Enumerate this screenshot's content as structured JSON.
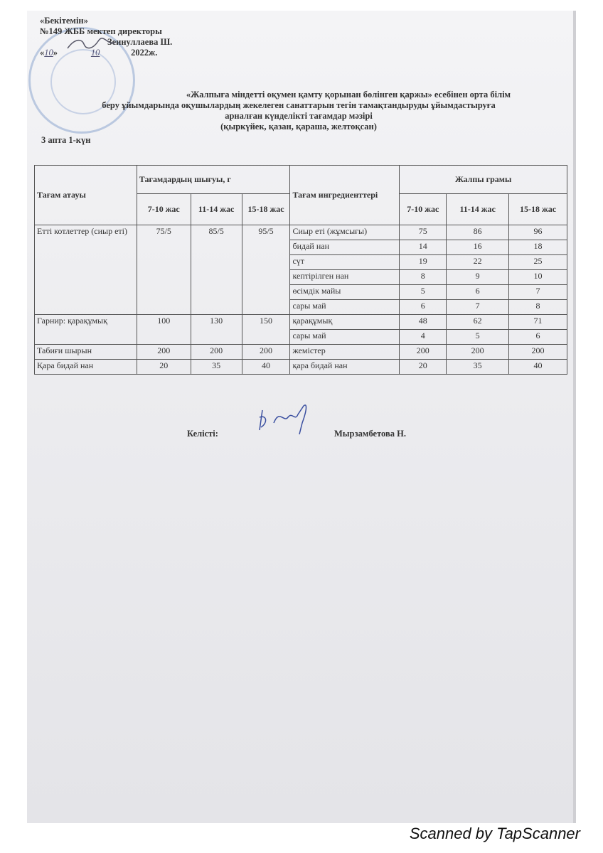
{
  "approval": {
    "line1": "«Бекітемін»",
    "line2": "№149 ЖББ мектеп директоры",
    "line3": "Зеинуллаева Ш.",
    "date_day": "10",
    "date_month": "10",
    "date_year": "2022ж."
  },
  "title": {
    "line1": "«Жалпыға міндетті оқумен қамту қорынан бөлінген қаржы» есебінен орта білім",
    "line2": "беру ұйымдарында оқушылардың жекелеген санаттарын тегін тамақтандыруды ұйымдастыруға",
    "line3": "арналған күнделікті тағамдар мәзірі",
    "line4": "(қыркүйек, қазан, қараша, желтоқсан)"
  },
  "week_day": "3 апта 1-күн",
  "table": {
    "headers": {
      "dish_name": "Тағам атауы",
      "output_group": "Тағамдардың шығуы, г",
      "ingredients": "Тағам ингредиенттері",
      "gross_group": "Жалпы грамы",
      "age1": "7-10 жас",
      "age2": "11-14 жас",
      "age3": "15-18 жас"
    },
    "dishes": [
      {
        "name": "Етті котлеттер (сиыр еті)",
        "output": [
          "75/5",
          "85/5",
          "95/5"
        ],
        "ingredients": [
          {
            "name": "Сиыр еті (жұмсығы)",
            "gross": [
              "75",
              "86",
              "96"
            ]
          },
          {
            "name": "бидай нан",
            "gross": [
              "14",
              "16",
              "18"
            ]
          },
          {
            "name": "сүт",
            "gross": [
              "19",
              "22",
              "25"
            ]
          },
          {
            "name": "кептірілген нан",
            "gross": [
              "8",
              "9",
              "10"
            ]
          },
          {
            "name": "өсімдік майы",
            "gross": [
              "5",
              "6",
              "7"
            ]
          },
          {
            "name": "сары май",
            "gross": [
              "6",
              "7",
              "8"
            ]
          }
        ]
      },
      {
        "name": "Гарнир: қарақұмық",
        "output": [
          "100",
          "130",
          "150"
        ],
        "ingredients": [
          {
            "name": "қарақұмық",
            "gross": [
              "48",
              "62",
              "71"
            ]
          },
          {
            "name": "сары май",
            "gross": [
              "4",
              "5",
              "6"
            ]
          }
        ]
      },
      {
        "name": "Табиғи шырын",
        "output": [
          "200",
          "200",
          "200"
        ],
        "ingredients": [
          {
            "name": "жемістер",
            "gross": [
              "200",
              "200",
              "200"
            ]
          }
        ]
      },
      {
        "name": "Қара бидай нан",
        "output": [
          "20",
          "35",
          "40"
        ],
        "ingredients": [
          {
            "name": "қара бидай нан",
            "gross": [
              "20",
              "35",
              "40"
            ]
          }
        ]
      }
    ]
  },
  "agreed": {
    "label": "Келісті:",
    "name": "Мырзамбетова Н."
  },
  "footer": "Scanned by TapScanner"
}
